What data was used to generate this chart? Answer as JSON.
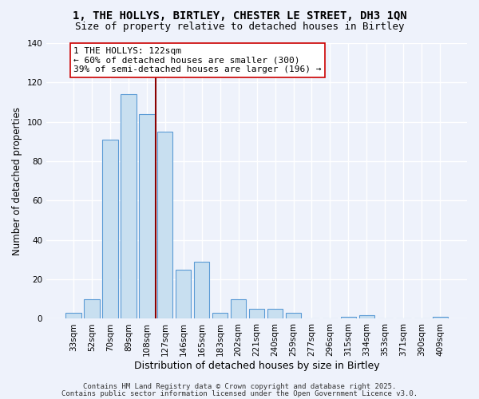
{
  "title_line1": "1, THE HOLLYS, BIRTLEY, CHESTER LE STREET, DH3 1QN",
  "title_line2": "Size of property relative to detached houses in Birtley",
  "xlabel": "Distribution of detached houses by size in Birtley",
  "ylabel": "Number of detached properties",
  "bar_labels": [
    "33sqm",
    "52sqm",
    "70sqm",
    "89sqm",
    "108sqm",
    "127sqm",
    "146sqm",
    "165sqm",
    "183sqm",
    "202sqm",
    "221sqm",
    "240sqm",
    "259sqm",
    "277sqm",
    "296sqm",
    "315sqm",
    "334sqm",
    "353sqm",
    "371sqm",
    "390sqm",
    "409sqm"
  ],
  "bar_values": [
    3,
    10,
    91,
    114,
    104,
    95,
    25,
    29,
    3,
    10,
    5,
    5,
    3,
    0,
    0,
    1,
    2,
    0,
    0,
    0,
    1
  ],
  "bar_color": "#c8dff0",
  "bar_edge_color": "#5b9bd5",
  "vline_x": 4.5,
  "vline_color": "#8b0000",
  "annotation_title": "1 THE HOLLYS: 122sqm",
  "annotation_line2": "← 60% of detached houses are smaller (300)",
  "annotation_line3": "39% of semi-detached houses are larger (196) →",
  "annotation_box_color": "white",
  "annotation_box_edge": "#cc0000",
  "ylim": [
    0,
    140
  ],
  "yticks": [
    0,
    20,
    40,
    60,
    80,
    100,
    120,
    140
  ],
  "footer_line1": "Contains HM Land Registry data © Crown copyright and database right 2025.",
  "footer_line2": "Contains public sector information licensed under the Open Government Licence v3.0.",
  "background_color": "#eef2fb",
  "grid_color": "#ffffff",
  "title_fontsize": 10,
  "subtitle_fontsize": 9,
  "xlabel_fontsize": 9,
  "ylabel_fontsize": 8.5,
  "tick_fontsize": 7.5,
  "annotation_fontsize": 8,
  "footer_fontsize": 6.5
}
